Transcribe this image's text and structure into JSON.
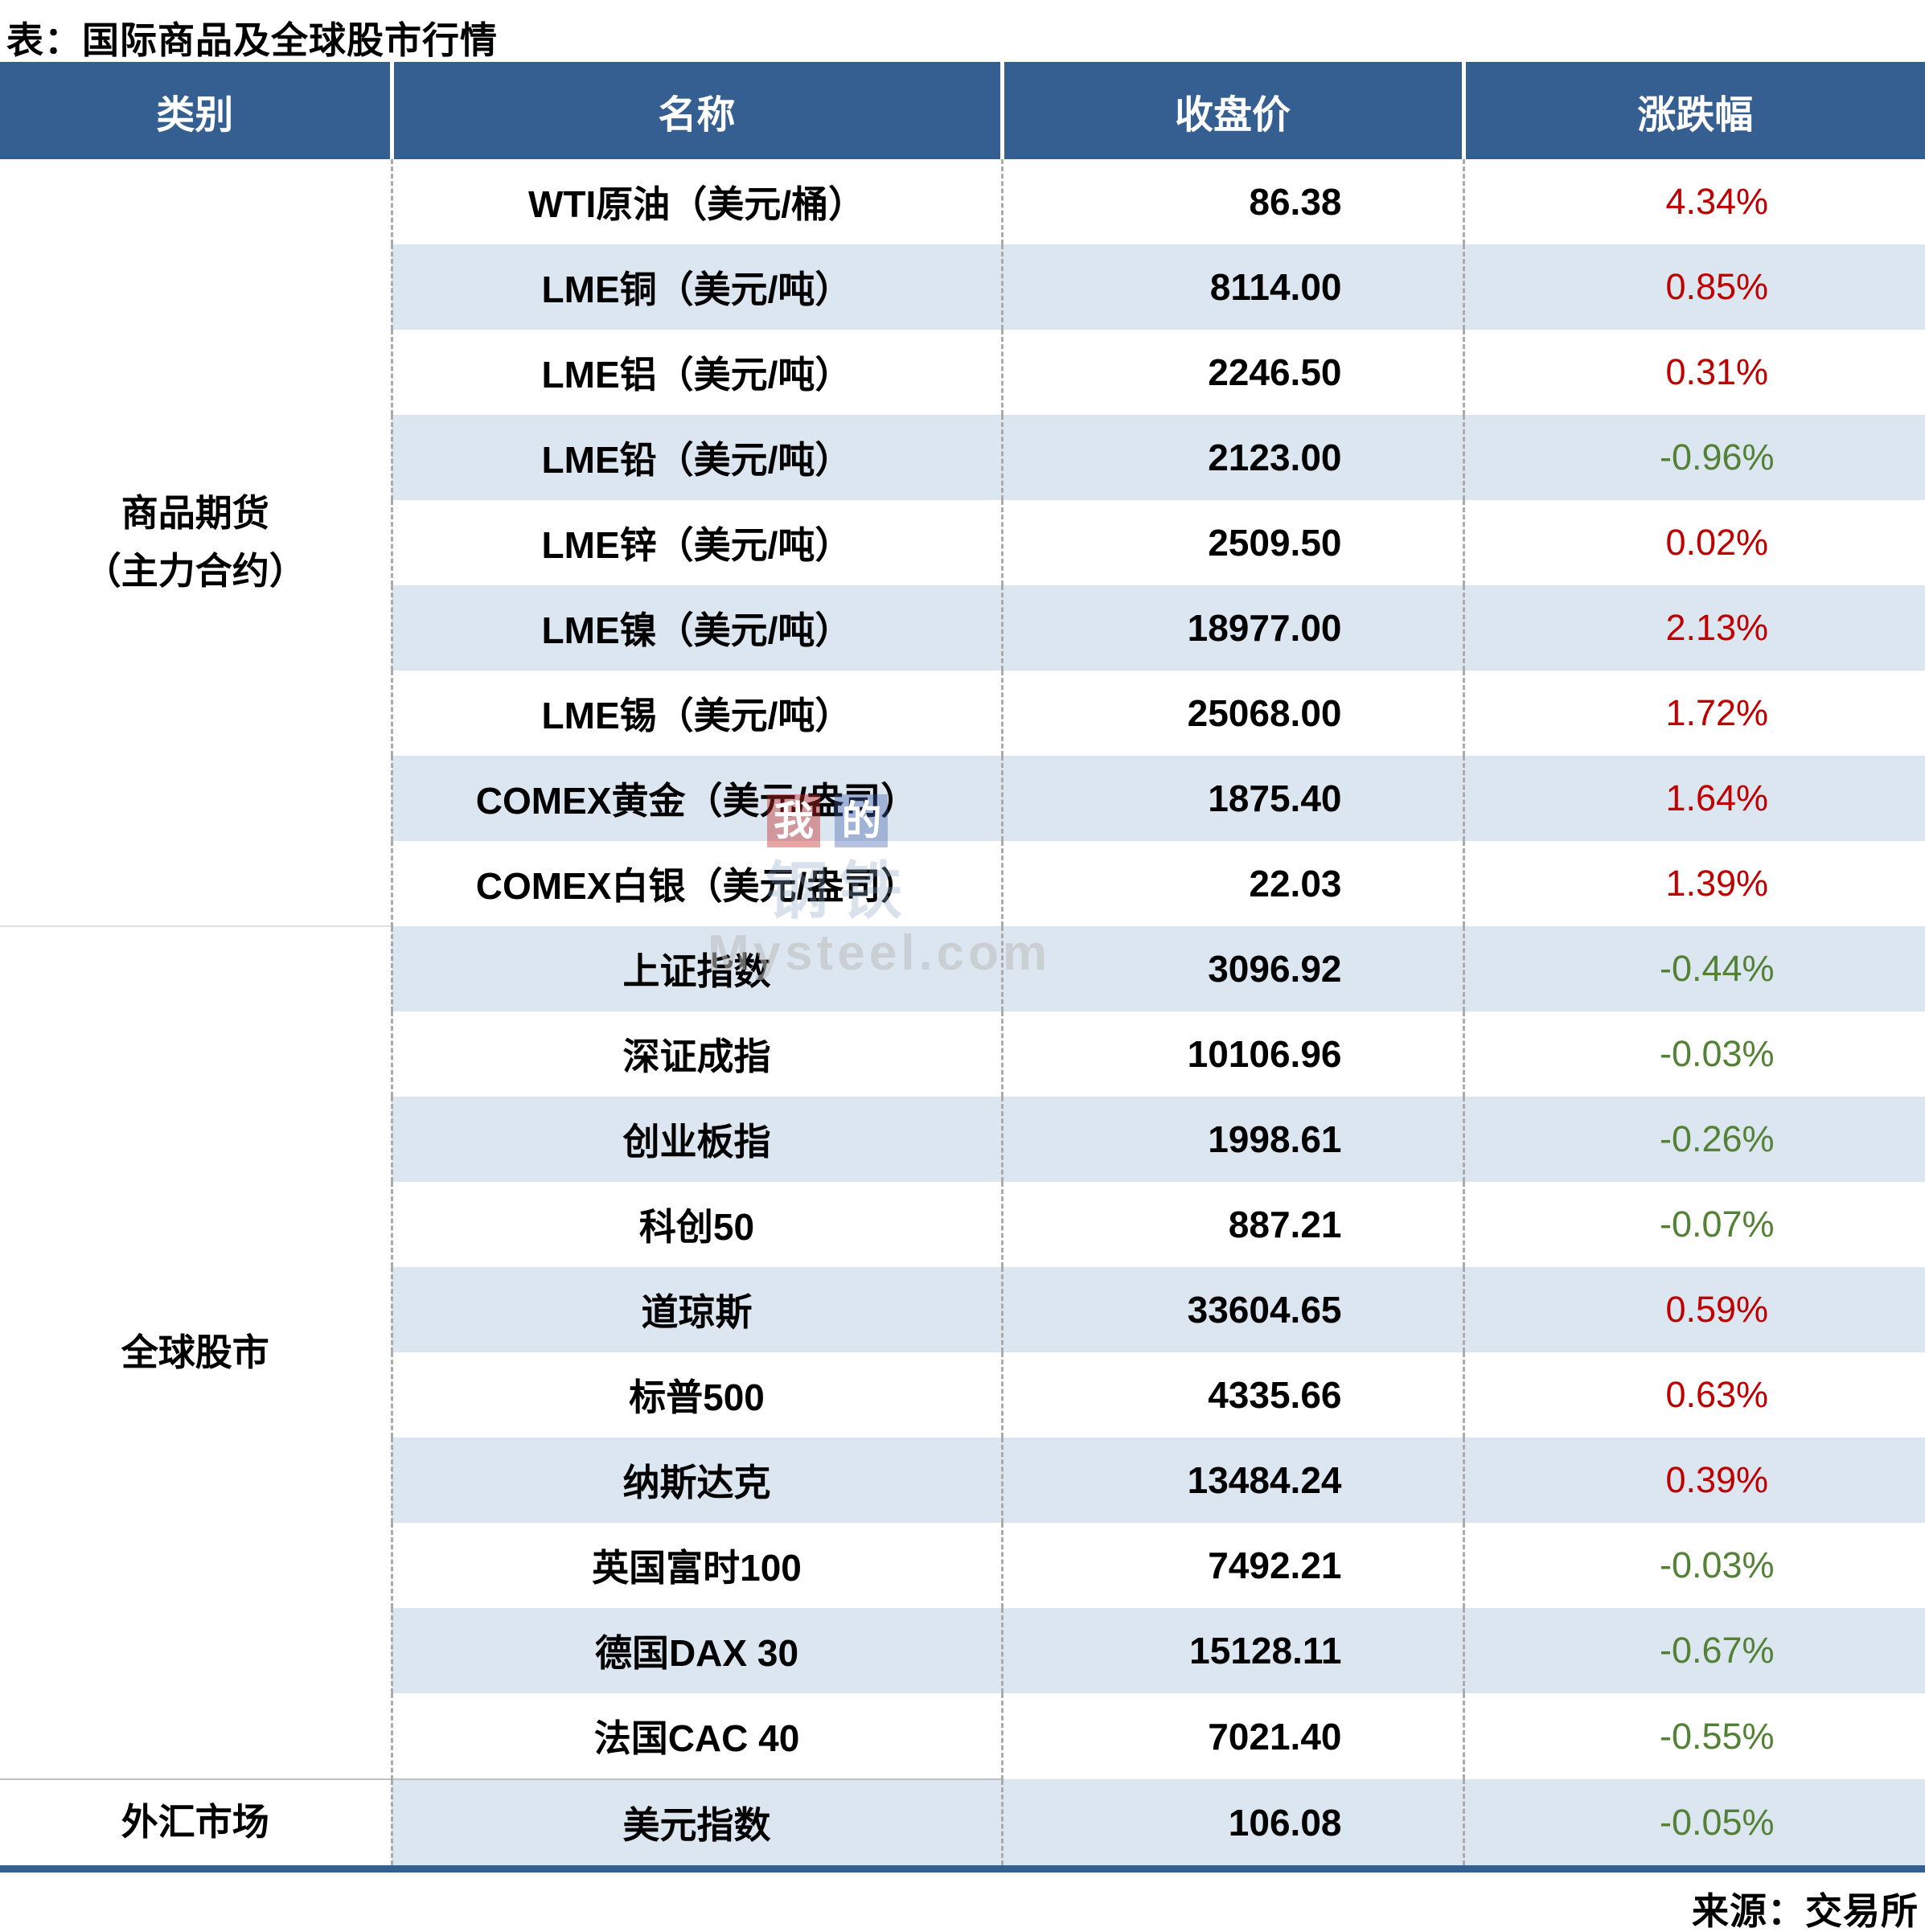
{
  "title": "表：国际商品及全球股市行情",
  "table": {
    "headers": [
      "类别",
      "名称",
      "收盘价",
      "涨跌幅"
    ],
    "sections": [
      {
        "category_lines": [
          "商品期货",
          "（主力合约）"
        ],
        "rows": [
          {
            "name": "WTI原油（美元/桶）",
            "close": "86.38",
            "change": "4.34%"
          },
          {
            "name": "LME铜（美元/吨）",
            "close": "8114.00",
            "change": "0.85%"
          },
          {
            "name": "LME铝（美元/吨）",
            "close": "2246.50",
            "change": "0.31%"
          },
          {
            "name": "LME铅（美元/吨）",
            "close": "2123.00",
            "change": "-0.96%"
          },
          {
            "name": "LME锌（美元/吨）",
            "close": "2509.50",
            "change": "0.02%"
          },
          {
            "name": "LME镍（美元/吨）",
            "close": "18977.00",
            "change": "2.13%"
          },
          {
            "name": "LME锡（美元/吨）",
            "close": "25068.00",
            "change": "1.72%"
          },
          {
            "name": "COMEX黄金（美元/盎司）",
            "close": "1875.40",
            "change": "1.64%"
          },
          {
            "name": "COMEX白银（美元/盎司）",
            "close": "22.03",
            "change": "1.39%"
          }
        ]
      },
      {
        "category_lines": [
          "全球股市"
        ],
        "rows": [
          {
            "name": "上证指数",
            "close": "3096.92",
            "change": "-0.44%"
          },
          {
            "name": "深证成指",
            "close": "10106.96",
            "change": "-0.03%"
          },
          {
            "name": "创业板指",
            "close": "1998.61",
            "change": "-0.26%"
          },
          {
            "name": "科创50",
            "close": "887.21",
            "change": "-0.07%"
          },
          {
            "name": "道琼斯",
            "close": "33604.65",
            "change": "0.59%"
          },
          {
            "name": "标普500",
            "close": "4335.66",
            "change": "0.63%"
          },
          {
            "name": "纳斯达克",
            "close": "13484.24",
            "change": "0.39%"
          },
          {
            "name": "英国富时100",
            "close": "7492.21",
            "change": "-0.03%"
          },
          {
            "name": "德国DAX 30",
            "close": "15128.11",
            "change": "-0.67%"
          },
          {
            "name": "法国CAC 40",
            "close": "7021.40",
            "change": "-0.55%"
          }
        ]
      },
      {
        "category_lines": [
          "外汇市场"
        ],
        "rows": [
          {
            "name": "美元指数",
            "close": "106.08",
            "change": "-0.05%"
          }
        ]
      }
    ]
  },
  "footer": {
    "source": "来源：交易所"
  },
  "watermark": {
    "square1": "我",
    "square2": "的",
    "line1": "钢铁",
    "line2": "Mysteel.com"
  },
  "colors": {
    "header_bg": "#365F91",
    "alt_row_bg": "#DCE6F1",
    "up_red": "#C00000",
    "down_green": "#538135"
  }
}
